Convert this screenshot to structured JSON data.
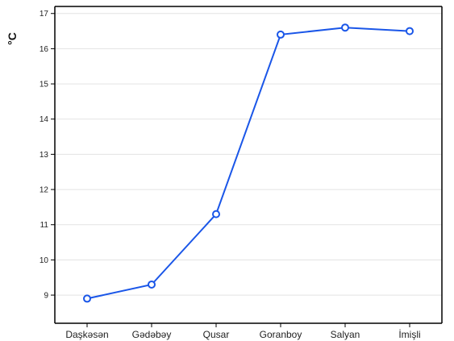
{
  "chart_data": {
    "type": "line",
    "title": "",
    "xlabel": "",
    "ylabel": "°C",
    "categories": [
      "Daşkəsən",
      "Gədəbəy",
      "Qusar",
      "Goranboy",
      "Salyan",
      "İmişli"
    ],
    "series": [
      {
        "values": [
          8.9,
          9.3,
          11.3,
          16.4,
          16.6,
          16.5
        ],
        "color": "#1a56e8"
      }
    ],
    "ylim": [
      8.2,
      17.2
    ],
    "yticks": [
      9,
      10,
      11,
      12,
      13,
      14,
      15,
      16,
      17
    ],
    "grid": true,
    "legend": "none"
  }
}
